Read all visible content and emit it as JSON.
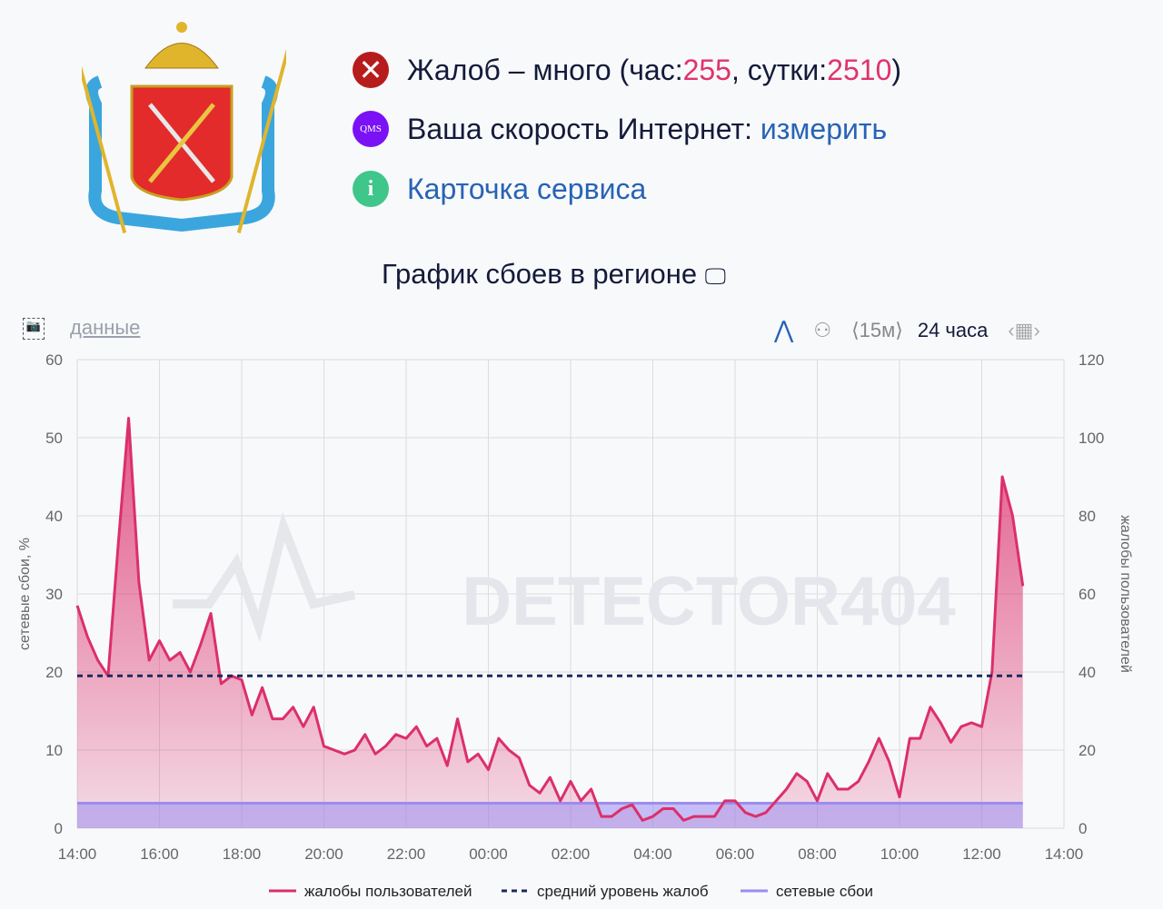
{
  "status": {
    "complaints_prefix": "Жалоб – много (час: ",
    "hour_count": "255",
    "day_label": ", сутки: ",
    "day_count": "2510",
    "suffix": ")",
    "speed_label": "Ваша скорость Интернет: ",
    "speed_link": "измерить",
    "qms_label": "QMS",
    "card_link": "Карточка сервиса"
  },
  "chart_title": "График сбоев в регионе",
  "toolbar": {
    "data_link": "данные",
    "interval": "⟨15м⟩",
    "period": "24 часа"
  },
  "colors": {
    "complaints": "#dc2f6a",
    "average": "#1b2a5c",
    "network": "#9b8cf0"
  },
  "chart_data": {
    "type": "area",
    "watermark": "DETECTOR404",
    "x_start": "14:00",
    "step_minutes": 15,
    "x_ticks": [
      "14:00",
      "16:00",
      "18:00",
      "20:00",
      "22:00",
      "00:00",
      "02:00",
      "04:00",
      "06:00",
      "08:00",
      "10:00",
      "12:00",
      "14:00"
    ],
    "y_left": {
      "label": "сетевые сбои, %",
      "range": [
        0,
        60
      ],
      "ticks": [
        "0",
        "10",
        "20",
        "30",
        "40",
        "50",
        "60"
      ]
    },
    "y_right": {
      "label": "жалобы пользователей",
      "range": [
        0,
        120
      ],
      "ticks": [
        "0",
        "20",
        "40",
        "60",
        "80",
        "100",
        "120"
      ]
    },
    "legend": [
      "жалобы пользователей",
      "средний уровень жалоб",
      "сетевые сбои"
    ],
    "legend_position": "bottom",
    "complaints": [
      57,
      49,
      43,
      39,
      73,
      105,
      63,
      43,
      48,
      43,
      45,
      40,
      47,
      55,
      37,
      39,
      38,
      29,
      36,
      28,
      28,
      31,
      26,
      31,
      21,
      20,
      19,
      20,
      24,
      19,
      21,
      24,
      23,
      26,
      21,
      23,
      16,
      28,
      17,
      19,
      15,
      23,
      20,
      18,
      11,
      9,
      13,
      7,
      12,
      7,
      10,
      3,
      3,
      5,
      6,
      2,
      3,
      5,
      5,
      2,
      3,
      3,
      3,
      7,
      7,
      4,
      3,
      4,
      7,
      10,
      14,
      12,
      7,
      14,
      10,
      10,
      12,
      17,
      23,
      17,
      8,
      23,
      23,
      31,
      27,
      22,
      26,
      27,
      26,
      40,
      90,
      80,
      62
    ],
    "average_complaints": 39,
    "network_failures_pct": 3.2
  }
}
